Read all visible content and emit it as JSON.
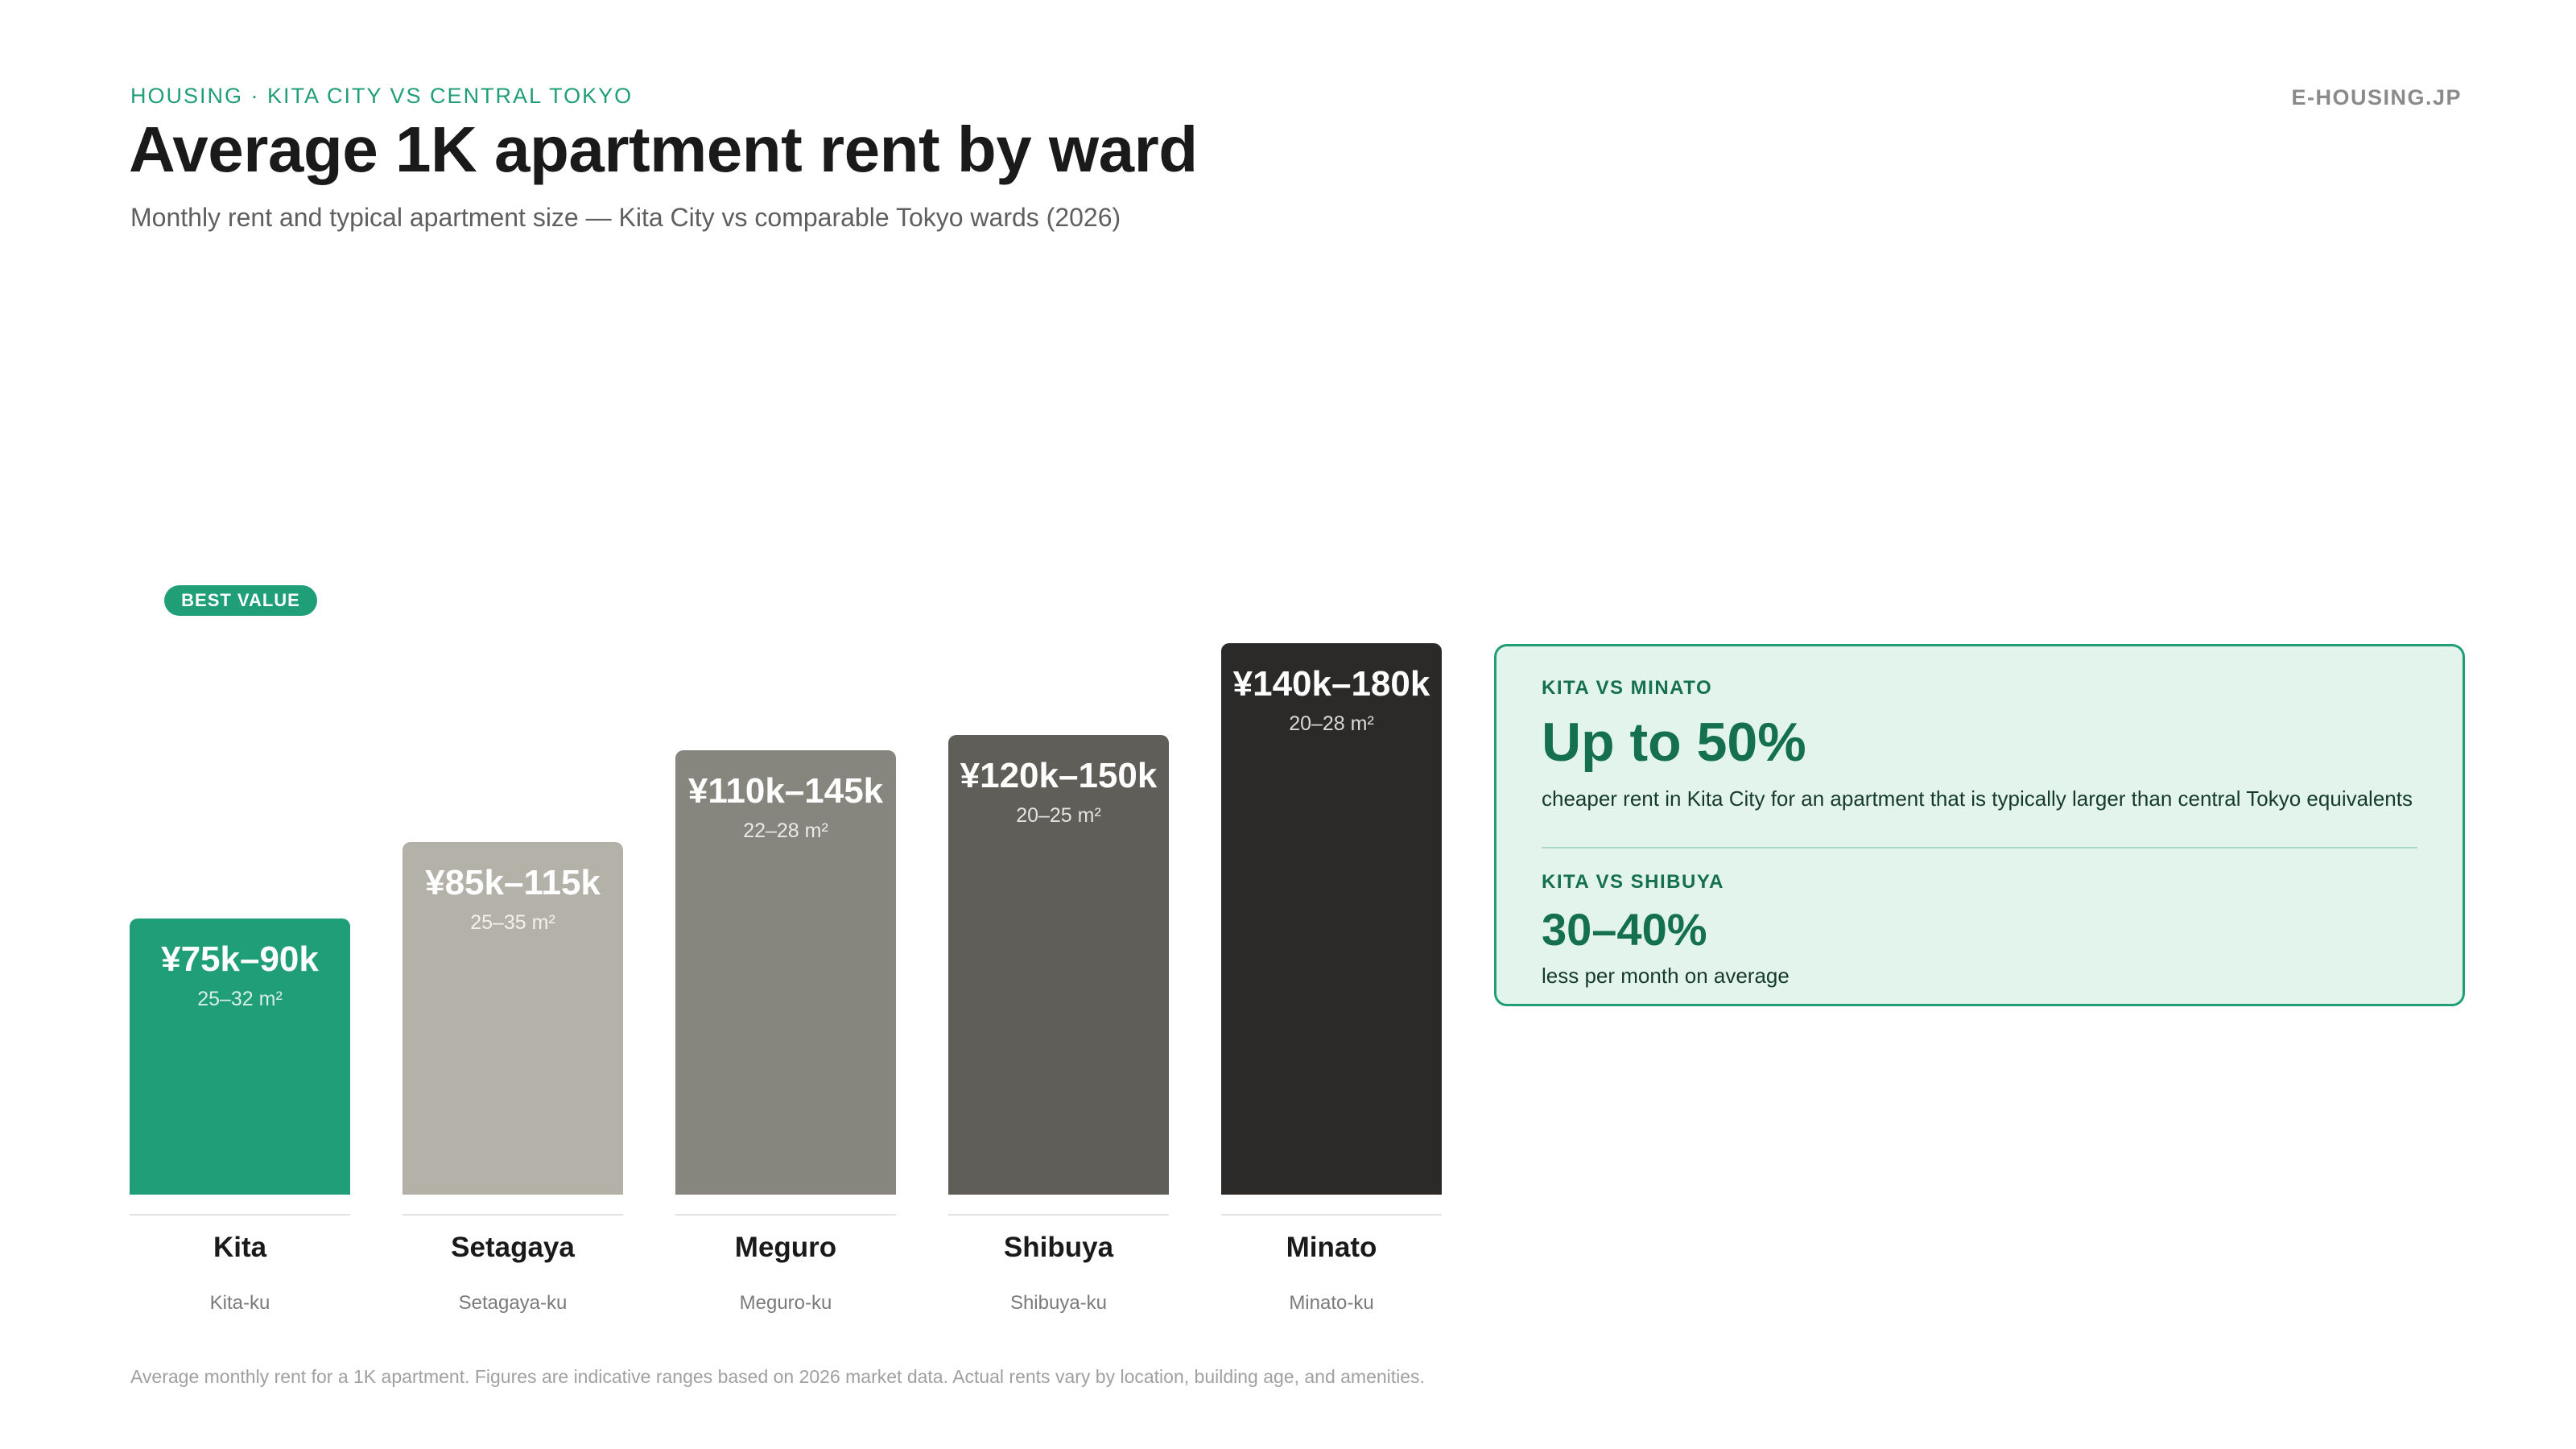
{
  "header": {
    "eyebrow": "HOUSING · KITA CITY VS CENTRAL TOKYO",
    "brand": "E-HOUSING.JP",
    "title": "Average 1K apartment rent by ward",
    "subtitle": "Monthly rent and typical apartment size — Kita City vs comparable Tokyo wards (2026)"
  },
  "badge": "BEST VALUE",
  "chart_data": {
    "type": "bar",
    "categories": [
      "Kita",
      "Setagaya",
      "Meguro",
      "Shibuya",
      "Minato"
    ],
    "sublabels": [
      "Kita-ku",
      "Setagaya-ku",
      "Meguro-ku",
      "Shibuya-ku",
      "Minato-ku"
    ],
    "price_labels": [
      "¥75k–90k",
      "¥85k–115k",
      "¥110k–145k",
      "¥120k–150k",
      "¥140k–180k"
    ],
    "size_labels": [
      "25–32 m²",
      "25–35 m²",
      "22–28 m²",
      "20–25 m²",
      "20–28 m²"
    ],
    "values": [
      90,
      115,
      145,
      150,
      180
    ],
    "colors": [
      "#1f9e77",
      "#b4b1a8",
      "#87867e",
      "#5f5e59",
      "#2b2a28"
    ],
    "ylim": [
      0,
      180
    ],
    "title": "Average 1K apartment rent by ward"
  },
  "callout": {
    "label1": "KITA VS MINATO",
    "big1": "Up to 50%",
    "text1": "cheaper rent in Kita City for an apartment that is typically larger than central Tokyo equivalents",
    "label2": "KITA VS SHIBUYA",
    "big2": "30–40%",
    "text2": "less per month on average"
  },
  "footnote": "Average monthly rent for a 1K apartment. Figures are indicative ranges based on 2026 market data. Actual rents vary by location, building age, and amenities."
}
